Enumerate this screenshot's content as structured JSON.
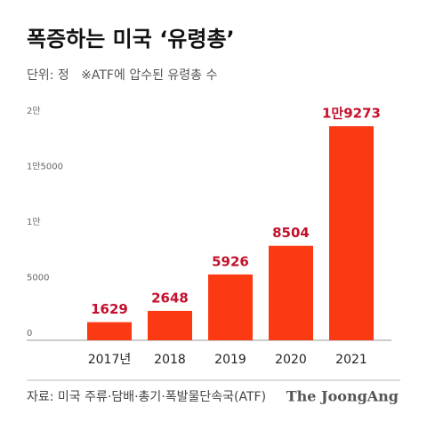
{
  "chart_data": {
    "type": "bar",
    "title": "폭증하는 미국 ‘유령총’",
    "subtitle": "단위: 정   ※ATF에 압수된 유령총 수",
    "categories": [
      "2017년",
      "2018",
      "2019",
      "2020",
      "2021"
    ],
    "values": [
      1629,
      2648,
      5926,
      8504,
      19273
    ],
    "value_labels": [
      "1629",
      "2648",
      "5926",
      "8504",
      "1만9273"
    ],
    "color": "#fb3a13",
    "label_color": "#c4102c",
    "ylim": [
      0,
      20000
    ],
    "yticks": [
      0,
      5000,
      {
        "value": 10000,
        "label": "1만"
      },
      {
        "value": 15000,
        "label": "1만5000"
      },
      {
        "value": 20000,
        "label": "2만"
      }
    ],
    "source": "자료: 미국 주류·담배·총기·폭발물단속국(ATF)",
    "brand": "The JoongAng"
  }
}
